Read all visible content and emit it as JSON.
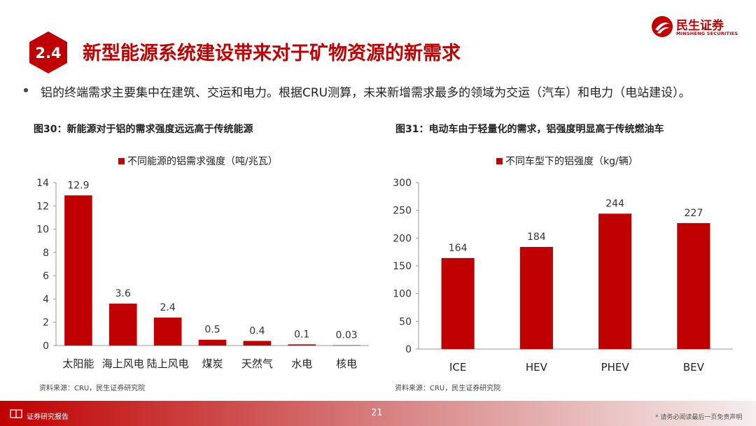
{
  "header": {
    "section_number": "2.4",
    "title": "新型能源系统建设带来对于矿物资源的新需求",
    "logo_cn": "民生证券",
    "logo_en": "MINSHENG SECURITIES",
    "brand_color": "#c00000"
  },
  "bullet": "铝的终端需求主要集中在建筑、交运和电力。根据CRU测算，未来新增需求最多的领域为交运（汽车）和电力（电站建设）。",
  "figures": {
    "left": {
      "title": "图30：新能源对于铝的需求强度远远高于传统能源",
      "source": "资料来源：CRU，民生证券研究院"
    },
    "right": {
      "title": "图31：电动车由于轻量化的需求，铝强度明显高于传统燃油车",
      "source": "资料来源：CRU，民生证券研究院"
    }
  },
  "chart_data": [
    {
      "type": "bar",
      "categories": [
        "太阳能",
        "海上风电",
        "陆上风电",
        "煤炭",
        "天然气",
        "水电",
        "核电"
      ],
      "series": [
        {
          "name": "不同能源的铝需求强度（吨/兆瓦）",
          "values": [
            12.9,
            3.6,
            2.4,
            0.5,
            0.4,
            0.1,
            0.03
          ]
        }
      ],
      "data_labels": [
        "12.9",
        "3.6",
        "2.4",
        "0.5",
        "0.4",
        "0.1",
        "0.03"
      ],
      "ylim": [
        0,
        14
      ],
      "yticks": [
        "0",
        "2",
        "4",
        "6",
        "8",
        "10",
        "12",
        "14"
      ],
      "grid": false,
      "legend": "top",
      "bar_color": "#c00000"
    },
    {
      "type": "bar",
      "categories": [
        "ICE",
        "HEV",
        "PHEV",
        "BEV"
      ],
      "series": [
        {
          "name": "不同车型下的铝强度（kg/辆）",
          "values": [
            164,
            184,
            244,
            227
          ]
        }
      ],
      "data_labels": [
        "164",
        "184",
        "244",
        "227"
      ],
      "ylim": [
        0,
        300
      ],
      "yticks": [
        "0",
        "50",
        "100",
        "150",
        "200",
        "250",
        "300"
      ],
      "grid": false,
      "legend": "top",
      "bar_color": "#c00000"
    }
  ],
  "footer": {
    "label": "证券研究报告",
    "page_number": "21",
    "disclaimer": "* 请务必阅读最后一页免责声明"
  }
}
